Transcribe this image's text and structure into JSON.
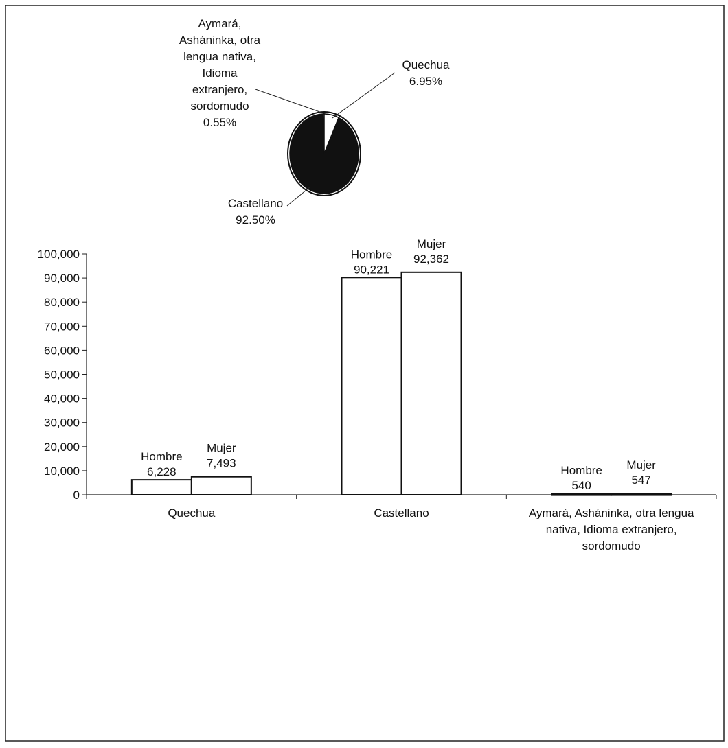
{
  "chart_data": [
    {
      "type": "pie",
      "slices": [
        {
          "label": "Castellano",
          "value": 92.5,
          "value_label": "92.50%",
          "color": "#111111"
        },
        {
          "label": "Quechua",
          "value": 6.95,
          "value_label": "6.95%",
          "color": "#ffffff"
        },
        {
          "label_lines": [
            "Aymará,",
            "Asháninka, otra",
            "lengua nativa,",
            "Idioma",
            "extranjero,",
            "sordomudo"
          ],
          "value": 0.55,
          "value_label": "0.55%",
          "color": "#ffffff"
        }
      ]
    },
    {
      "type": "bar",
      "categories": [
        {
          "lines": [
            "Quechua"
          ]
        },
        {
          "lines": [
            "Castellano"
          ]
        },
        {
          "lines": [
            "Aymará, Asháninka, otra lengua",
            "nativa, Idioma extranjero,",
            "sordomudo"
          ]
        }
      ],
      "series": [
        {
          "name": "Hombre",
          "values": [
            6228,
            90221,
            540
          ],
          "value_labels": [
            "6,228",
            "90,221",
            "540"
          ]
        },
        {
          "name": "Mujer",
          "values": [
            7493,
            92362,
            547
          ],
          "value_labels": [
            "7,493",
            "92,362",
            "547"
          ]
        }
      ],
      "ylim": [
        0,
        100000
      ],
      "yticks": [
        {
          "value": 0,
          "label": "0"
        },
        {
          "value": 10000,
          "label": "10,000"
        },
        {
          "value": 20000,
          "label": "20,000"
        },
        {
          "value": 30000,
          "label": "30,000"
        },
        {
          "value": 40000,
          "label": "40,000"
        },
        {
          "value": 50000,
          "label": "50,000"
        },
        {
          "value": 60000,
          "label": "60,000"
        },
        {
          "value": 70000,
          "label": "70,000"
        },
        {
          "value": 80000,
          "label": "80,000"
        },
        {
          "value": 90000,
          "label": "90,000"
        },
        {
          "value": 100000,
          "label": "100,000"
        }
      ],
      "grid": false,
      "legend": "none"
    }
  ]
}
